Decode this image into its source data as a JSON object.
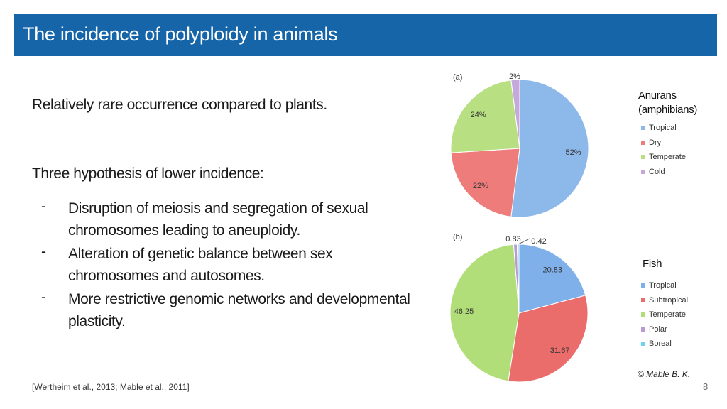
{
  "title": "The incidence of polyploidy in animals",
  "intro": "Relatively rare occurrence compared to plants.",
  "hypothesis_heading": "Three hypothesis of lower incidence:",
  "bullet_marker": "-",
  "bullets": [
    "Disruption of meiosis and segregation of sexual chromosomes leading to aneuploidy.",
    "Alteration of genetic balance between sex chromosomes and autosomes.",
    "More restrictive genomic networks and developmental plasticity."
  ],
  "reference": "[Wertheim et al., 2013; Mable et al., 2011]",
  "page_number": "8",
  "copyright": "© Mable B. K.",
  "chart_data": [
    {
      "type": "pie",
      "panel_label": "(a)",
      "group_title_line1": "Anurans",
      "group_title_line2": "(amphibians)",
      "categories": [
        "Tropical",
        "Dry",
        "Temperate",
        "Cold"
      ],
      "values": [
        52,
        22,
        24,
        2
      ],
      "value_labels": [
        "52%",
        "22%",
        "24%",
        "2%"
      ],
      "colors": [
        "#8db8ea",
        "#ee7c7a",
        "#b8df82",
        "#c6a9dc"
      ],
      "legend_placement": "right"
    },
    {
      "type": "pie",
      "panel_label": "(b)",
      "group_title_line1": "Fish",
      "categories": [
        "Tropical",
        "Subtropical",
        "Temperate",
        "Polar",
        "Boreal"
      ],
      "values": [
        20.83,
        31.67,
        46.25,
        0.83,
        0.42
      ],
      "value_labels": [
        "20.83",
        "31.67",
        "46.25",
        "0.83",
        "0.42"
      ],
      "colors": [
        "#7fb0ea",
        "#ea6d6b",
        "#b2de7a",
        "#b89bd4",
        "#6fd1ef"
      ],
      "legend_placement": "right"
    }
  ]
}
